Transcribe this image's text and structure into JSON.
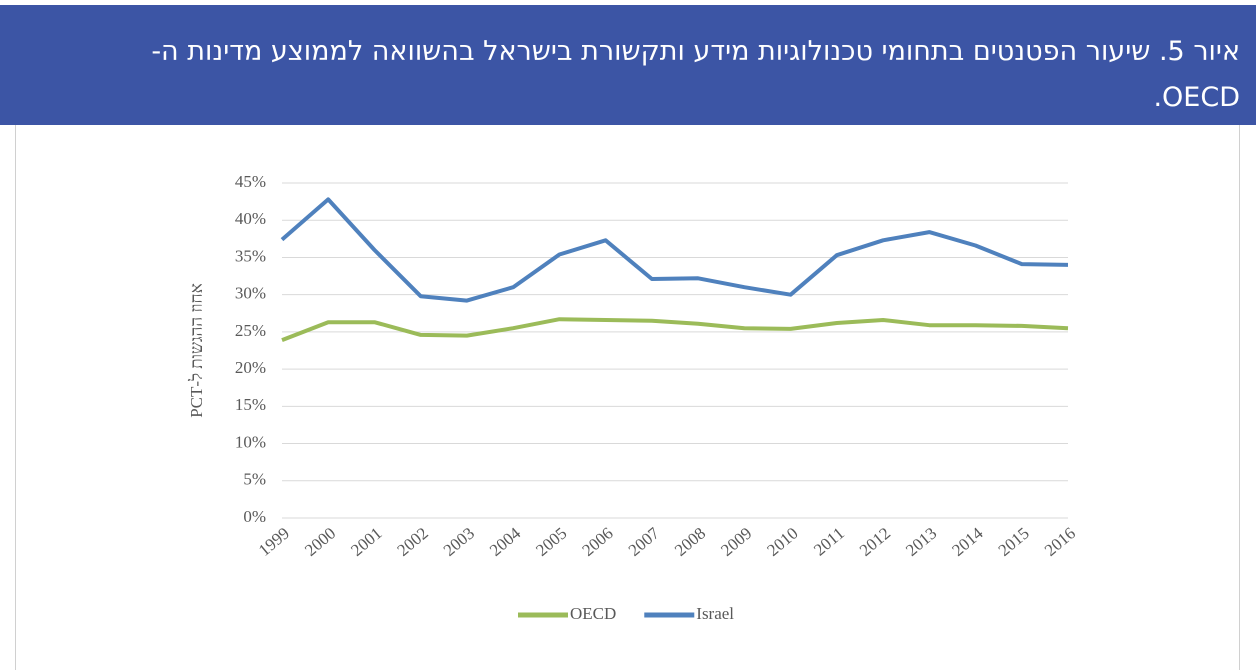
{
  "chart_data": {
    "type": "line",
    "title": "איור 5. שיעור הפטנטים בתחומי טכנולוגיות מידע ותקשורת בישראל בהשוואה לממוצע מדינות ה-OECD.",
    "y_label": "אחוז ההגשות ל-PCT",
    "categories": [
      "1999",
      "2000",
      "2001",
      "2002",
      "2003",
      "2004",
      "2005",
      "2006",
      "2007",
      "2008",
      "2009",
      "2010",
      "2011",
      "2012",
      "2013",
      "2014",
      "2015",
      "2016"
    ],
    "series": [
      {
        "name": "OECD",
        "color": "#9bbb59",
        "values": [
          23.9,
          26.3,
          26.3,
          24.6,
          24.5,
          25.5,
          26.7,
          26.6,
          26.5,
          26.1,
          25.5,
          25.4,
          26.2,
          26.6,
          25.9,
          25.9,
          25.8,
          25.5
        ]
      },
      {
        "name": "Israel",
        "color": "#4f81bd",
        "values": [
          37.4,
          42.8,
          36.0,
          29.8,
          29.2,
          31.0,
          35.4,
          37.3,
          32.1,
          32.2,
          31.0,
          30.0,
          35.3,
          37.3,
          38.4,
          36.6,
          34.1,
          34.0
        ]
      }
    ],
    "ylim": [
      0,
      45
    ],
    "yticks": [
      {
        "value": 0,
        "label": "0%"
      },
      {
        "value": 5,
        "label": "5%"
      },
      {
        "value": 10,
        "label": "10%"
      },
      {
        "value": 15,
        "label": "15%"
      },
      {
        "value": 20,
        "label": "20%"
      },
      {
        "value": 25,
        "label": "25%"
      },
      {
        "value": 30,
        "label": "30%"
      },
      {
        "value": 35,
        "label": "35%"
      },
      {
        "value": 40,
        "label": "40%"
      },
      {
        "value": 45,
        "label": "45%"
      }
    ],
    "grid": true,
    "legend": "bottom"
  }
}
